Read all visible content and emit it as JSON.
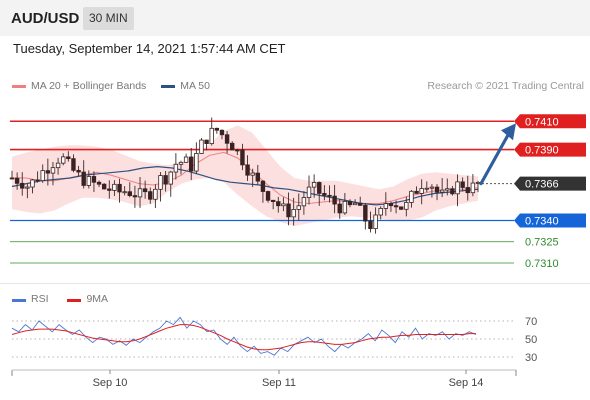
{
  "header": {
    "symbol": "AUD/USD",
    "timeframe": "30 MIN"
  },
  "datetime": "Tuesday, September 14, 2021 1:57:44 AM CET",
  "legend": [
    {
      "label": "MA 20 + Bollinger Bands",
      "color": "#f08080"
    },
    {
      "label": "MA 50",
      "color": "#2c5282"
    }
  ],
  "copyright": "Research © 2021 Trading Central",
  "chart_data": {
    "type": "candlestick",
    "price_range": [
      0.7298,
      0.7425
    ],
    "current_price": "0.7366",
    "resistance_levels": [
      {
        "label": "0.7410",
        "value": 0.741,
        "color": "#e02020"
      },
      {
        "label": "0.7390",
        "value": 0.739,
        "color": "#e02020"
      }
    ],
    "pivot_level": {
      "label": "0.7340",
      "value": 0.734,
      "color": "#1565d8"
    },
    "support_levels": [
      {
        "label": "0.7325",
        "value": 0.7325,
        "color": "#2e8b2e"
      },
      {
        "label": "0.7310",
        "value": 0.731,
        "color": "#2e8b2e"
      }
    ],
    "forecast_arrow": {
      "from": 0.7366,
      "to": 0.741,
      "direction": "up",
      "color": "#2f5e9e"
    },
    "price_path": [
      0.737,
      0.7368,
      0.7364,
      0.737,
      0.7376,
      0.7381,
      0.7385,
      0.7378,
      0.7372,
      0.7368,
      0.7366,
      0.7363,
      0.7362,
      0.736,
      0.7361,
      0.7359,
      0.7357,
      0.736,
      0.7369,
      0.7371,
      0.738,
      0.7382,
      0.7378,
      0.7392,
      0.74,
      0.7404,
      0.7399,
      0.7393,
      0.7385,
      0.7375,
      0.7366,
      0.736,
      0.7355,
      0.7348,
      0.7346,
      0.735,
      0.736,
      0.7362,
      0.7358,
      0.7354,
      0.735,
      0.7348,
      0.7352,
      0.7342,
      0.7336,
      0.7344,
      0.7356,
      0.7352,
      0.7348,
      0.7358,
      0.7366,
      0.7368,
      0.736,
      0.7356,
      0.7364,
      0.7366,
      0.7362,
      0.7366
    ],
    "bollinger_upper": [
      0.7385,
      0.7388,
      0.739,
      0.7392,
      0.7393,
      0.7393,
      0.7392,
      0.739,
      0.7386,
      0.7382,
      0.738,
      0.7379,
      0.7381,
      0.7386,
      0.7394,
      0.7403,
      0.7407,
      0.7402,
      0.739,
      0.7378,
      0.737,
      0.7368,
      0.7368,
      0.7368,
      0.7366,
      0.7364,
      0.7362,
      0.7364,
      0.7369,
      0.7373,
      0.7374,
      0.7373,
      0.7372,
      0.7371
    ],
    "bollinger_lower": [
      0.7348,
      0.7346,
      0.7345,
      0.7347,
      0.7352,
      0.7356,
      0.7356,
      0.7355,
      0.7353,
      0.735,
      0.7352,
      0.736,
      0.7366,
      0.7369,
      0.737,
      0.7367,
      0.7358,
      0.735,
      0.7343,
      0.7339,
      0.7336,
      0.7338,
      0.734,
      0.7342,
      0.7343,
      0.7342,
      0.7341,
      0.734,
      0.734,
      0.7342,
      0.7347,
      0.735,
      0.7352,
      0.7354
    ],
    "ma20": [
      0.737,
      0.737,
      0.7368,
      0.7368,
      0.737,
      0.7372,
      0.7374,
      0.7372,
      0.7369,
      0.7366,
      0.7365,
      0.7367,
      0.7372,
      0.738,
      0.7386,
      0.7388,
      0.7384,
      0.7375,
      0.7366,
      0.7358,
      0.7353,
      0.7352,
      0.7353,
      0.7354,
      0.7353,
      0.7352,
      0.7352,
      0.7354,
      0.7357,
      0.7359,
      0.7361,
      0.7362,
      0.7362,
      0.7363
    ],
    "ma50": [
      0.7364,
      0.7366,
      0.7368,
      0.7369,
      0.737,
      0.7372,
      0.7373,
      0.7374,
      0.7375,
      0.7377,
      0.7378,
      0.7377,
      0.7375,
      0.7372,
      0.7369,
      0.7367,
      0.7366,
      0.7365,
      0.7363,
      0.7362,
      0.736,
      0.7358,
      0.7356,
      0.7354,
      0.7352,
      0.7351,
      0.7352,
      0.7354,
      0.7357,
      0.7359,
      0.736,
      0.7361,
      0.7362
    ],
    "x_labels": [
      "Sep 10",
      "Sep 11",
      "Sep 14"
    ],
    "rsi": {
      "ticks": [
        "70",
        "50",
        "30"
      ],
      "range": [
        20,
        80
      ],
      "legend": [
        {
          "label": "RSI",
          "color": "#4a77d6"
        },
        {
          "label": "9MA",
          "color": "#e02020"
        }
      ],
      "rsi_values": [
        62,
        58,
        66,
        60,
        70,
        64,
        58,
        66,
        60,
        55,
        60,
        52,
        46,
        52,
        50,
        44,
        48,
        43,
        50,
        46,
        52,
        58,
        62,
        70,
        66,
        74,
        62,
        70,
        66,
        58,
        60,
        50,
        44,
        52,
        42,
        36,
        42,
        34,
        36,
        32,
        40,
        36,
        44,
        48,
        52,
        46,
        50,
        42,
        36,
        44,
        40,
        46,
        50,
        56,
        48,
        60,
        54,
        46,
        58,
        52,
        62,
        50,
        56,
        54,
        58,
        50,
        56,
        54,
        58,
        55
      ],
      "ma_values": [
        55,
        57,
        59,
        60,
        61,
        61,
        61,
        60,
        59,
        57,
        55,
        53,
        51,
        50,
        49,
        48,
        47,
        47,
        48,
        50,
        53,
        56,
        59,
        62,
        64,
        66,
        66,
        65,
        63,
        60,
        57,
        54,
        50,
        47,
        44,
        41,
        39,
        38,
        38,
        39,
        40,
        42,
        44,
        46,
        47,
        47,
        46,
        45,
        44,
        44,
        45,
        46,
        48,
        50,
        51,
        52,
        52,
        53,
        54,
        54,
        55,
        55,
        55,
        55,
        55,
        55,
        55,
        55,
        56,
        56
      ]
    }
  }
}
